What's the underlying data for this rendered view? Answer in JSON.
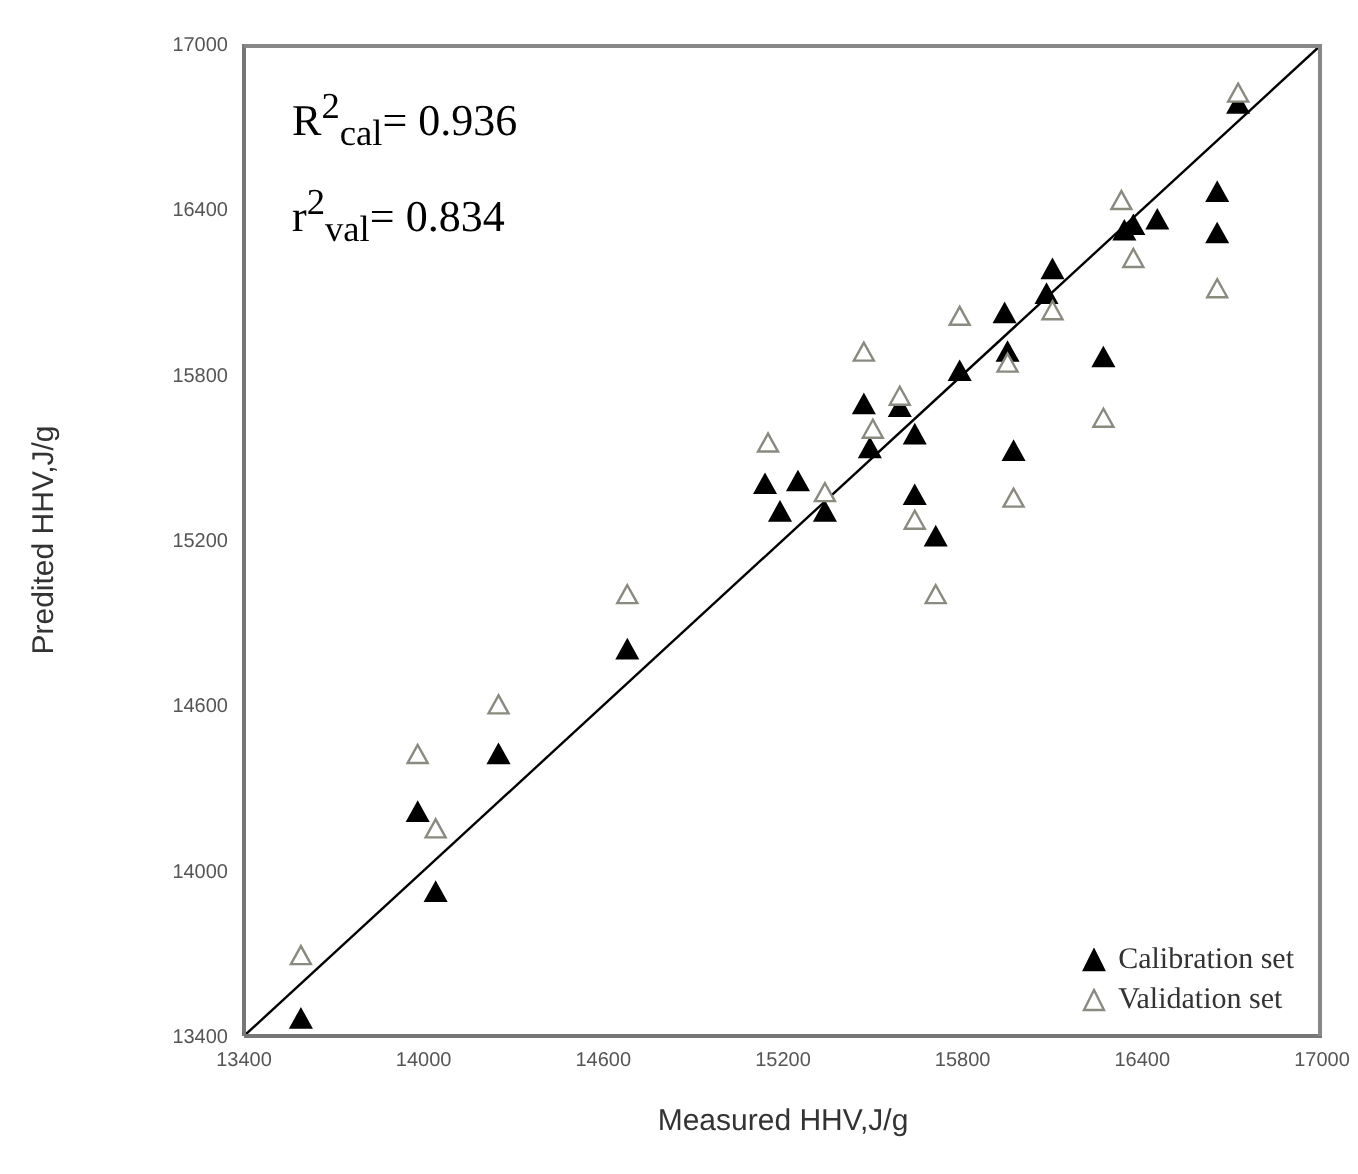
{
  "chart_data": {
    "type": "scatter",
    "xlabel": "Measured HHV,J/g",
    "ylabel": "Predited HHV,J/g",
    "annotations": [
      "R$^{2}$$_{cal}$= 0.936",
      "r$^{2}$$_{val}$= 0.834"
    ],
    "xlim": [
      13400,
      17000
    ],
    "xticks": [
      13400,
      14000,
      14600,
      15200,
      15800,
      16400,
      17000
    ],
    "ylim": [
      13400,
      17000
    ],
    "yticks": [
      13400,
      14000,
      14600,
      15200,
      15800,
      16400,
      17000
    ],
    "grid": false,
    "legend": "bottom right",
    "marker": "triangle",
    "series": [
      {
        "name": "Calibration set",
        "color": "#000000",
        "x": [
          13590,
          13980,
          14040,
          14250,
          14680,
          15140,
          15190,
          15250,
          15340,
          15470,
          15490,
          15590,
          15640,
          15640,
          15710,
          15790,
          15940,
          15950,
          15970,
          16100,
          16080,
          16270,
          16340,
          16370,
          16450,
          16650,
          16650,
          16720
        ],
        "values": [
          13460,
          14210,
          13920,
          14420,
          14800,
          15400,
          15300,
          15410,
          15300,
          15690,
          15530,
          15680,
          15580,
          15360,
          15210,
          15810,
          16020,
          15880,
          15520,
          16180,
          16090,
          15860,
          16320,
          16340,
          16360,
          16460,
          16310,
          16780
        ]
      },
      {
        "name": "Validation set",
        "color": "#8a8a80",
        "x": [
          13590,
          13980,
          14040,
          14250,
          14680,
          15150,
          15340,
          15470,
          15500,
          15590,
          15640,
          15710,
          15790,
          15950,
          15970,
          16100,
          16270,
          16330,
          16370,
          16650,
          16720
        ],
        "values": [
          13690,
          14420,
          14150,
          14600,
          15000,
          15550,
          15370,
          15880,
          15600,
          15720,
          15270,
          15000,
          16010,
          15840,
          15350,
          16030,
          15640,
          16430,
          16220,
          16110,
          16820
        ]
      },
      {
        "type": "line",
        "marker": "none",
        "color": "#000000",
        "x": [
          13400,
          17000
        ],
        "values": [
          13400,
          17000
        ]
      }
    ]
  }
}
